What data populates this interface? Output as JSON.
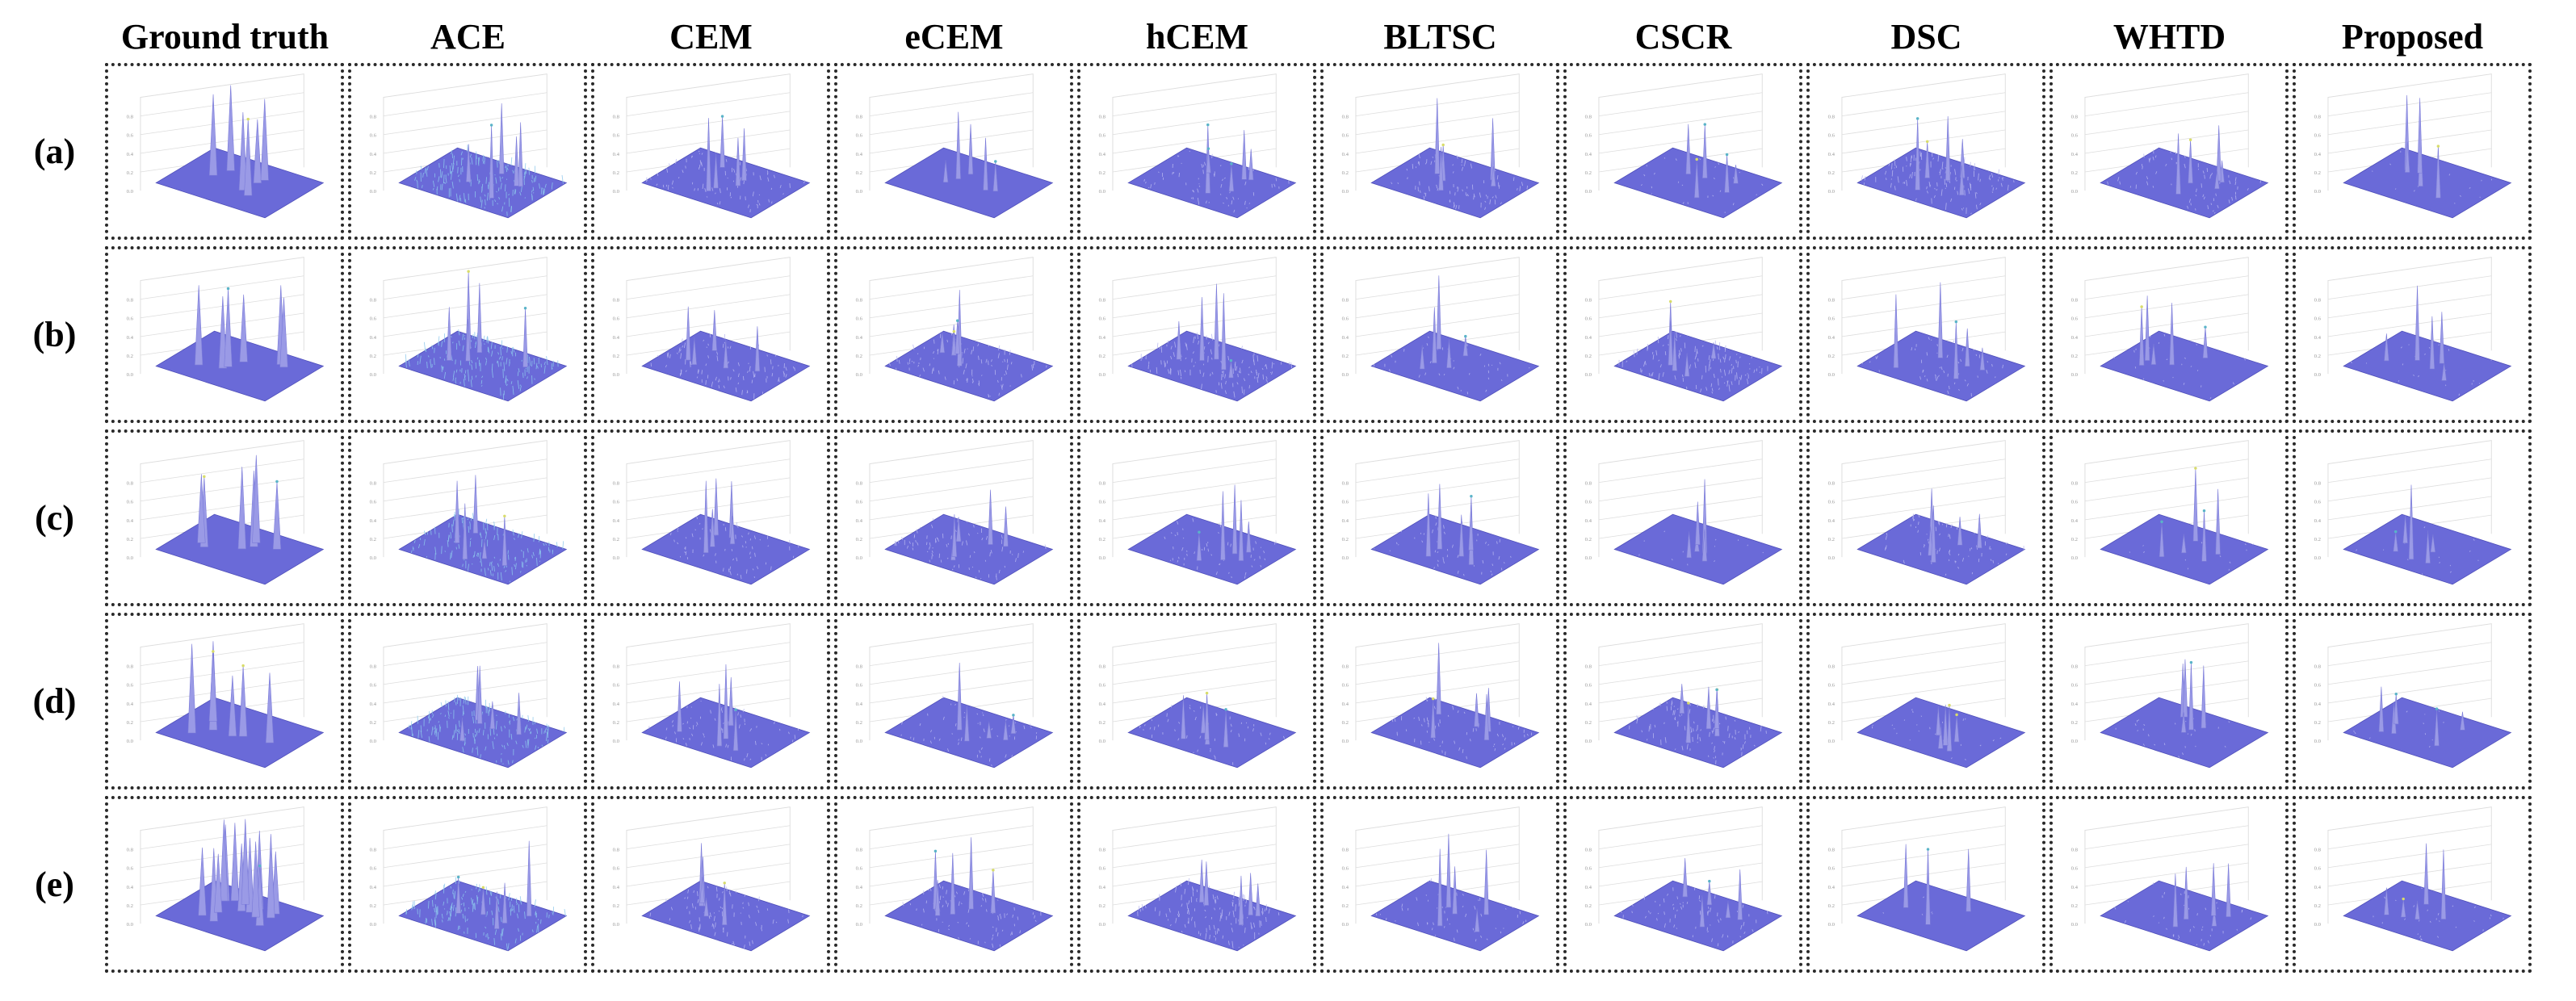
{
  "figure": {
    "columns": [
      "Ground truth",
      "ACE",
      "CEM",
      "eCEM",
      "hCEM",
      "BLTSC",
      "CSCR",
      "DSC",
      "WHTD",
      "Proposed"
    ],
    "rows": [
      "(a)",
      "(b)",
      "(c)",
      "(d)",
      "(e)"
    ],
    "surface_color": "#6a6ad8",
    "grid_color": "#dddddd",
    "spike_color": "#9a9ae6",
    "peak_colors": [
      "#5ab4c8",
      "#d8dc6a"
    ],
    "noise_levels": [
      [
        0,
        0.6,
        0.3,
        0.0,
        0.25,
        0.3,
        0.1,
        0.45,
        0.25,
        0.05
      ],
      [
        0,
        0.6,
        0.35,
        0.35,
        0.45,
        0.15,
        0.45,
        0.2,
        0.1,
        0.08
      ],
      [
        0,
        0.55,
        0.25,
        0.3,
        0.2,
        0.2,
        0.05,
        0.25,
        0.05,
        0.05
      ],
      [
        0,
        0.6,
        0.25,
        0.2,
        0.2,
        0.25,
        0.35,
        0.1,
        0.1,
        0.05
      ],
      [
        0,
        0.55,
        0.3,
        0.3,
        0.45,
        0.2,
        0.25,
        0.02,
        0.15,
        0.1
      ]
    ]
  }
}
